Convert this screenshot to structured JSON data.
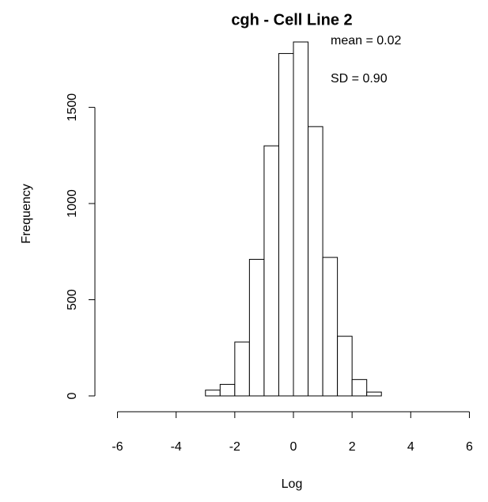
{
  "chart_data": {
    "type": "histogram",
    "title": "cgh - Cell Line 2",
    "x_label": "Log",
    "y_label": "Frequency",
    "annotations": [
      "mean =  0.02",
      "SD =  0.90"
    ],
    "bins": [
      -6.5,
      -6,
      -5.5,
      -5,
      -4.5,
      -4,
      -3.5,
      -3,
      -2.5,
      -2,
      -1.5,
      -1,
      -0.5,
      0,
      0.5,
      1,
      1.5,
      2,
      2.5,
      3,
      3.5,
      4,
      4.5,
      5,
      5.5,
      6,
      6.5
    ],
    "values": [
      0,
      0,
      0,
      0,
      0,
      0,
      0,
      30,
      60,
      280,
      710,
      1300,
      1780,
      1840,
      1400,
      720,
      310,
      85,
      20,
      0,
      0,
      0,
      0,
      0,
      0,
      0
    ],
    "color": "#ffffff",
    "edge_color": "#000000",
    "xlim": [
      -6.5,
      6.5
    ],
    "xticks": [
      -6,
      -4,
      -2,
      0,
      2,
      4,
      6
    ],
    "ylim": [
      0,
      1840
    ],
    "yticks": [
      0,
      500,
      1000,
      1500
    ]
  }
}
